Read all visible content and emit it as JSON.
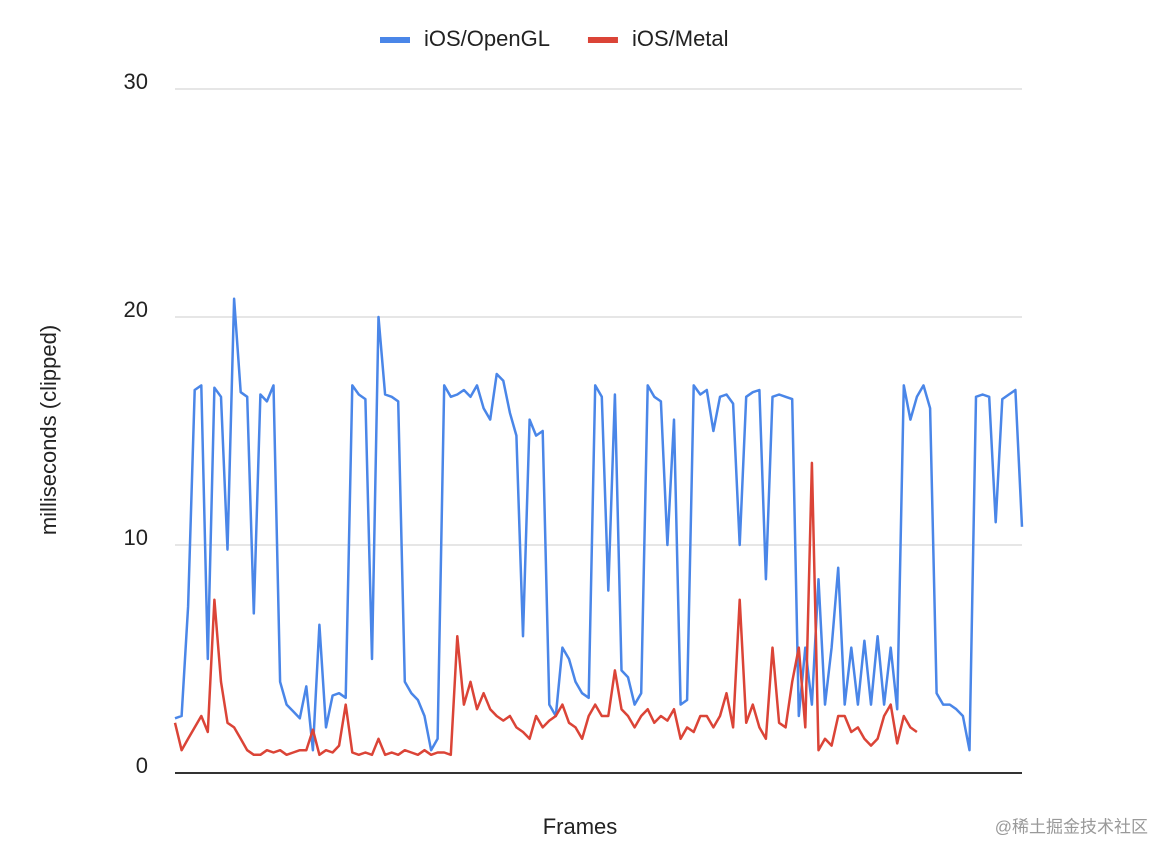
{
  "chart_data": {
    "type": "line",
    "y_label": "milliseconds (clipped)",
    "x_label": "Frames",
    "ylim": [
      0,
      30
    ],
    "yticks": [
      0,
      10,
      20,
      30
    ],
    "grid": true,
    "legend": "top",
    "series": [
      {
        "name": "iOS/OpenGL",
        "color": "#4a86e8",
        "values": [
          2.4,
          2.5,
          7.3,
          16.8,
          17,
          5,
          16.9,
          16.5,
          9.8,
          20.8,
          16.7,
          16.5,
          7,
          16.6,
          16.3,
          17,
          4,
          3,
          2.7,
          2.4,
          3.8,
          1,
          6.5,
          2,
          3.4,
          3.5,
          3.3,
          17,
          16.6,
          16.4,
          5,
          20,
          16.6,
          16.5,
          16.3,
          4,
          3.5,
          3.2,
          2.5,
          1,
          1.5,
          17,
          16.5,
          16.6,
          16.8,
          16.5,
          17,
          16,
          15.5,
          17.5,
          17.2,
          15.8,
          14.8,
          6,
          15.5,
          14.8,
          15,
          3,
          2.5,
          5.5,
          5,
          4,
          3.5,
          3.3,
          17,
          16.5,
          8,
          16.6,
          4.5,
          4.2,
          3,
          3.5,
          17,
          16.5,
          16.3,
          10,
          15.5,
          3,
          3.2,
          17,
          16.6,
          16.8,
          15,
          16.5,
          16.6,
          16.2,
          10,
          16.5,
          16.7,
          16.8,
          8.5,
          16.5,
          16.6,
          16.5,
          16.4,
          2.5,
          5.5,
          3,
          8.5,
          3,
          5.5,
          9,
          3,
          5.5,
          3,
          5.8,
          3,
          6,
          3,
          5.5,
          2.8,
          17,
          15.5,
          16.5,
          17,
          16,
          3.5,
          3,
          3,
          2.8,
          2.5,
          1,
          16.5,
          16.6,
          16.5,
          11,
          16.4,
          16.6,
          16.8,
          10.8
        ]
      },
      {
        "name": "iOS/Metal",
        "color": "#db4437",
        "values": [
          2.2,
          1,
          1.5,
          2,
          2.5,
          1.8,
          7.6,
          4,
          2.2,
          2,
          1.5,
          1,
          0.8,
          0.8,
          1,
          0.9,
          1,
          0.8,
          0.9,
          1,
          1,
          1.9,
          0.8,
          1,
          0.9,
          1.2,
          3,
          0.9,
          0.8,
          0.9,
          0.8,
          1.5,
          0.8,
          0.9,
          0.8,
          1,
          0.9,
          0.8,
          1,
          0.8,
          0.9,
          0.9,
          0.8,
          6,
          3,
          4,
          2.8,
          3.5,
          2.8,
          2.5,
          2.3,
          2.5,
          2,
          1.8,
          1.5,
          2.5,
          2,
          2.3,
          2.5,
          3,
          2.2,
          2,
          1.5,
          2.5,
          3,
          2.5,
          2.5,
          4.5,
          2.8,
          2.5,
          2,
          2.5,
          2.8,
          2.2,
          2.5,
          2.3,
          2.8,
          1.5,
          2,
          1.8,
          2.5,
          2.5,
          2,
          2.5,
          3.5,
          2,
          7.6,
          2.2,
          3,
          2,
          1.5,
          5.5,
          2.2,
          2,
          4,
          5.5,
          2,
          13.6,
          1,
          1.5,
          1.2,
          2.5,
          2.5,
          1.8,
          2,
          1.5,
          1.2,
          1.5,
          2.5,
          3,
          1.3,
          2.5,
          2,
          1.8,
          null,
          null,
          null,
          null,
          null,
          null,
          null,
          null,
          null,
          null,
          null,
          null,
          null,
          null,
          null,
          null
        ]
      }
    ]
  },
  "watermark": "@稀土掘金技术社区"
}
